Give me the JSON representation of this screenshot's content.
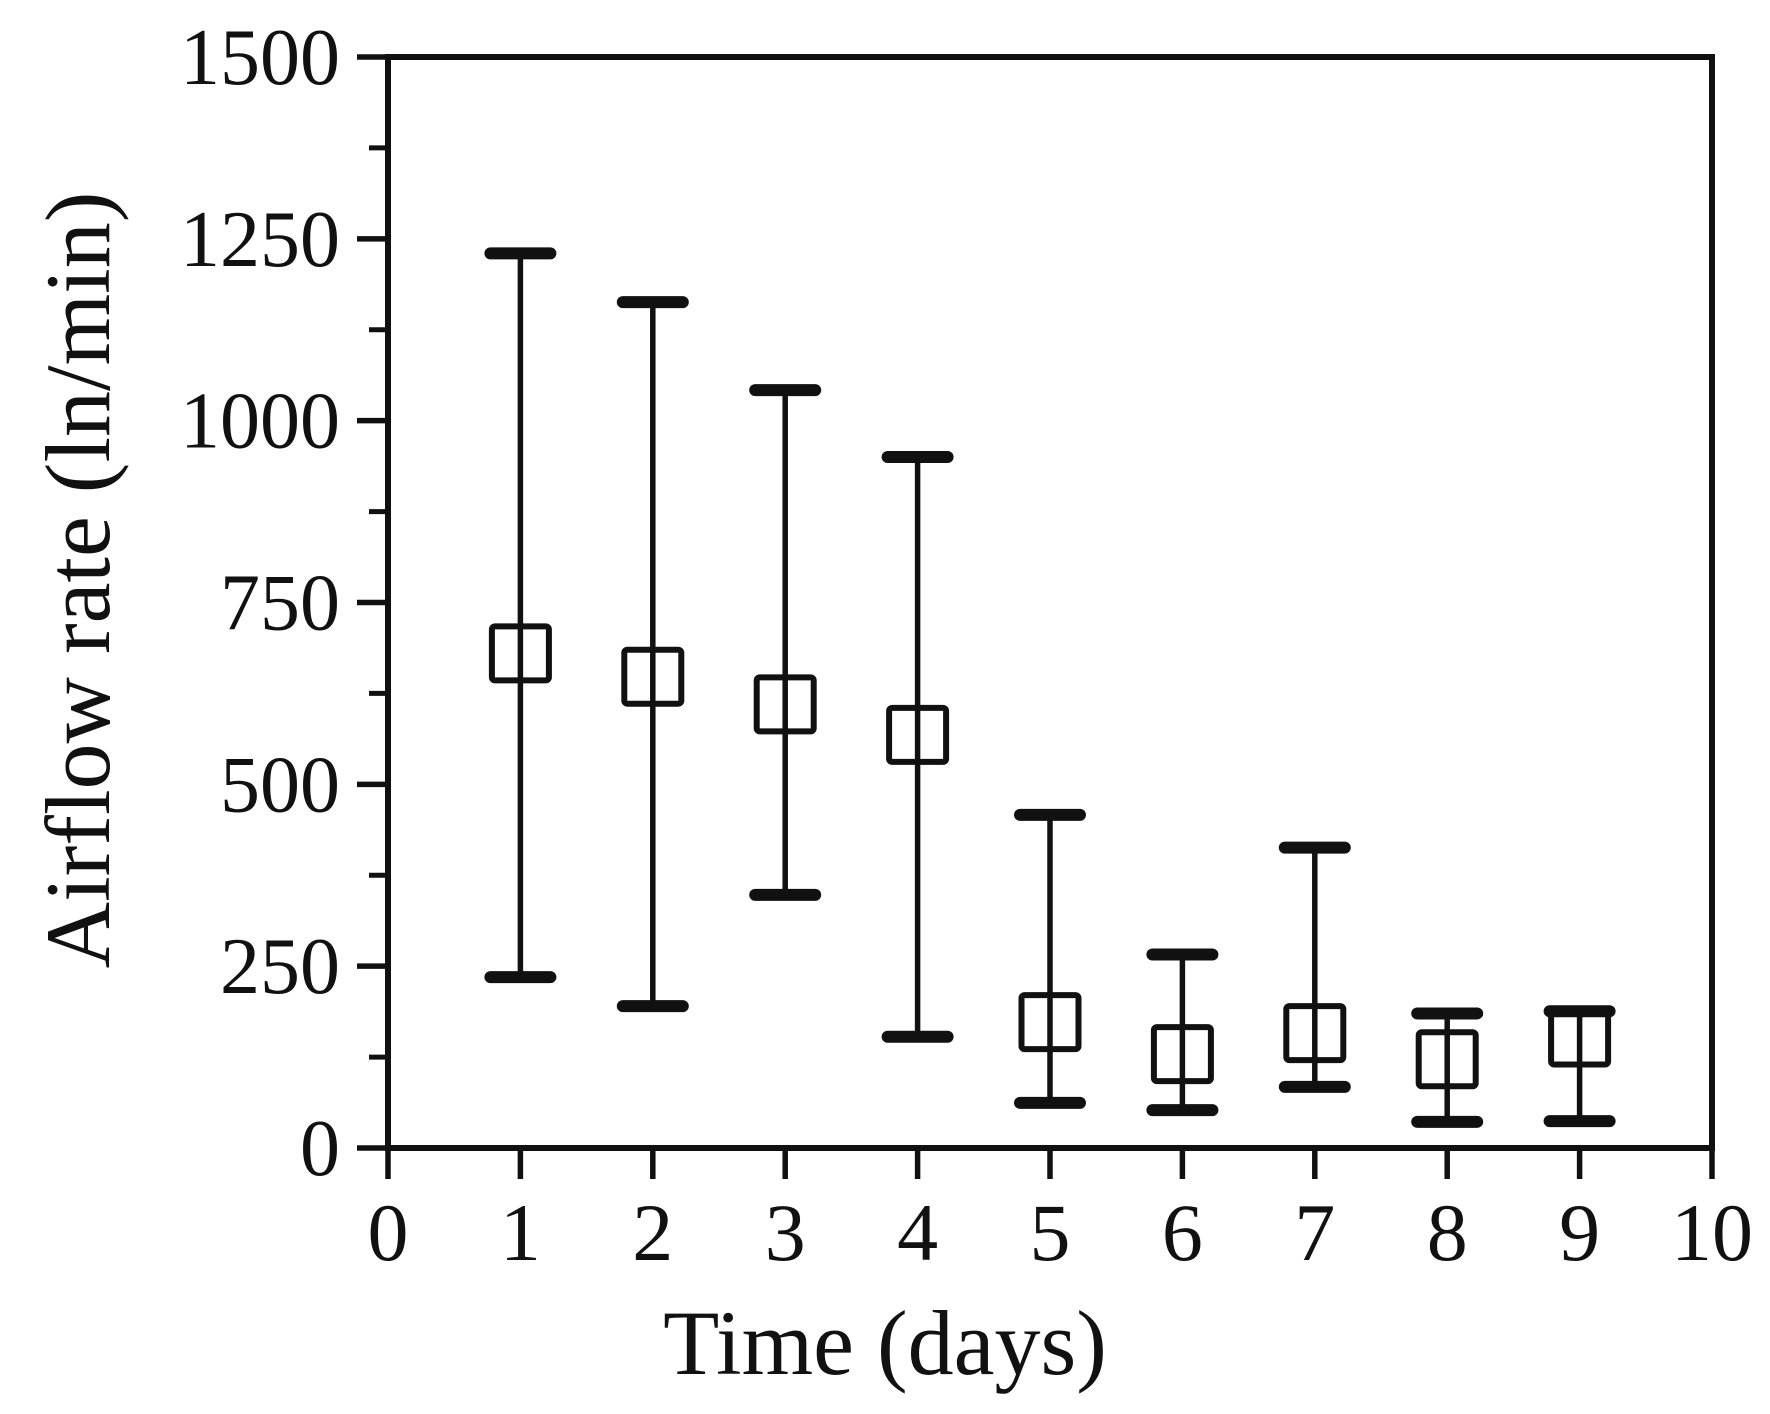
{
  "chart_data": {
    "type": "scatter",
    "marker": "open-square",
    "error_bars": "asymmetric",
    "title": "",
    "xlabel": "Time (days)",
    "ylabel": "Airflow rate (ln/min)",
    "xlim": [
      0,
      10
    ],
    "ylim": [
      0,
      1500
    ],
    "x_ticks": [
      0,
      1,
      2,
      3,
      4,
      5,
      6,
      7,
      8,
      9,
      10
    ],
    "y_ticks_major": [
      0,
      250,
      500,
      750,
      1000,
      1250,
      1500
    ],
    "y_ticks_minor": [
      125,
      375,
      625,
      875,
      1125,
      1375
    ],
    "grid": false,
    "frame": true,
    "legend": "none",
    "series": [
      {
        "name": "Airflow rate",
        "points": [
          {
            "x": 1,
            "y": 680,
            "y_lower": 235,
            "y_upper": 1230
          },
          {
            "x": 2,
            "y": 648,
            "y_lower": 195,
            "y_upper": 1163
          },
          {
            "x": 3,
            "y": 610,
            "y_lower": 348,
            "y_upper": 1042
          },
          {
            "x": 4,
            "y": 568,
            "y_lower": 153,
            "y_upper": 950
          },
          {
            "x": 5,
            "y": 173,
            "y_lower": 62,
            "y_upper": 458
          },
          {
            "x": 6,
            "y": 129,
            "y_lower": 52,
            "y_upper": 266
          },
          {
            "x": 7,
            "y": 158,
            "y_lower": 84,
            "y_upper": 413
          },
          {
            "x": 8,
            "y": 122,
            "y_lower": 36,
            "y_upper": 185
          },
          {
            "x": 9,
            "y": 152,
            "y_lower": 37,
            "y_upper": 188
          }
        ]
      }
    ],
    "colors": {
      "ink": "#111111",
      "background": "#ffffff"
    }
  }
}
